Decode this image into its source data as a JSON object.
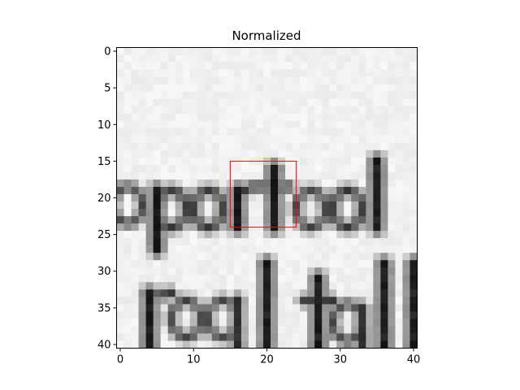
{
  "chart_data": {
    "type": "heatmap",
    "title": "Normalized",
    "xlabel": "",
    "ylabel": "",
    "colormap": "gray",
    "xlim": [
      -0.5,
      40.5
    ],
    "ylim": [
      40.5,
      -0.5
    ],
    "x_ticks": [
      0,
      10,
      20,
      30,
      40
    ],
    "y_ticks": [
      0,
      5,
      10,
      15,
      20,
      25,
      30,
      35,
      40
    ],
    "image_size": [
      41,
      41
    ],
    "image_content": "grayscale crop of scanned handwritten text showing fragments 'eported' and 'real tall'",
    "highlight_box": {
      "x0": 15,
      "y0": 15,
      "x1": 24,
      "y1": 24,
      "color": "#ff0000"
    },
    "glyph_rows": [
      {
        "text": "eported",
        "y_top": 15,
        "y_bottom": 27,
        "x_start": -1,
        "x_end": 36
      },
      {
        "text": "real tall",
        "y_top": 29,
        "y_bottom": 40,
        "x_start": 2,
        "x_end": 41
      }
    ]
  }
}
